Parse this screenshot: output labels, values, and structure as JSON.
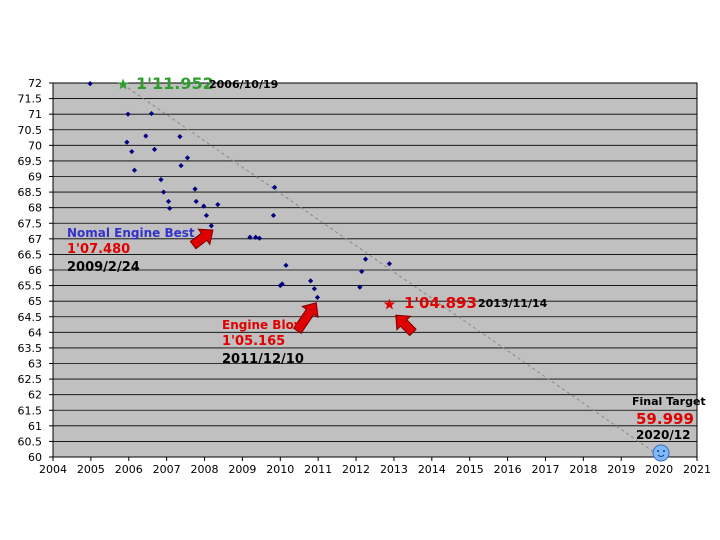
{
  "chart_data": {
    "type": "scatter",
    "title": "",
    "xlabel": "",
    "ylabel": "",
    "xlim": [
      2004,
      2021
    ],
    "ylim": [
      60,
      72
    ],
    "x_ticks": [
      2004,
      2005,
      2006,
      2007,
      2008,
      2009,
      2010,
      2011,
      2012,
      2013,
      2014,
      2015,
      2016,
      2017,
      2018,
      2019,
      2020,
      2021
    ],
    "y_ticks": [
      60,
      60.5,
      61,
      61.5,
      62,
      62.5,
      63,
      63.5,
      64,
      64.5,
      65,
      65.5,
      66,
      66.5,
      67,
      67.5,
      68,
      68.5,
      69,
      69.5,
      70,
      70.5,
      71,
      71.5,
      72
    ],
    "grid": true,
    "background": "#c0c0c0",
    "series": [
      {
        "color": "#000080",
        "points": [
          [
            2004.98,
            71.98
          ],
          [
            2005.98,
            71.0
          ],
          [
            2006.6,
            71.02
          ],
          [
            2005.95,
            70.1
          ],
          [
            2006.08,
            69.8
          ],
          [
            2006.45,
            70.3
          ],
          [
            2006.68,
            69.87
          ],
          [
            2006.15,
            69.2
          ],
          [
            2006.85,
            68.9
          ],
          [
            2006.92,
            68.5
          ],
          [
            2007.35,
            70.28
          ],
          [
            2007.38,
            69.35
          ],
          [
            2007.55,
            69.6
          ],
          [
            2007.75,
            68.6
          ],
          [
            2007.78,
            68.2
          ],
          [
            2007.05,
            68.2
          ],
          [
            2007.08,
            67.98
          ],
          [
            2007.98,
            68.05
          ],
          [
            2008.05,
            67.75
          ],
          [
            2008.35,
            68.1
          ],
          [
            2008.18,
            67.42
          ],
          [
            2009.2,
            67.05
          ],
          [
            2009.35,
            67.05
          ],
          [
            2009.45,
            67.02
          ],
          [
            2009.85,
            68.65
          ],
          [
            2009.82,
            67.75
          ],
          [
            2010.15,
            66.15
          ],
          [
            2010.0,
            65.5
          ],
          [
            2010.05,
            65.55
          ],
          [
            2010.8,
            65.65
          ],
          [
            2010.9,
            65.4
          ],
          [
            2010.98,
            65.12
          ],
          [
            2012.1,
            65.45
          ],
          [
            2012.15,
            65.95
          ],
          [
            2012.25,
            66.35
          ],
          [
            2012.88,
            66.2
          ]
        ]
      }
    ],
    "markers": [
      {
        "x": 2005.85,
        "y": 71.952,
        "symbol": "star",
        "color": "#2d9e2d"
      },
      {
        "x": 2012.88,
        "y": 64.893,
        "symbol": "star",
        "color": "#e00000"
      },
      {
        "x": 2020.05,
        "y": 60.0,
        "symbol": "smiley",
        "color": "#7fb8ff"
      }
    ],
    "trendline": {
      "from": [
        2005.85,
        71.952
      ],
      "to": [
        2020.05,
        60.0
      ],
      "style": "dashed",
      "color": "#888888"
    },
    "arrows": [
      {
        "from": [
          2007.7,
          66.8
        ],
        "to": [
          2008.22,
          67.28
        ],
        "color": "#e00000"
      },
      {
        "from": [
          2010.45,
          64.05
        ],
        "to": [
          2010.95,
          64.95
        ],
        "color": "#e00000"
      },
      {
        "from": [
          2013.5,
          64.0
        ],
        "to": [
          2013.05,
          64.55
        ],
        "color": "#e00000"
      }
    ],
    "annotations": [
      {
        "id": "best_time",
        "lines": [
          {
            "text": "1'11.952",
            "color": "#2d9e2d",
            "size": 16
          },
          {
            "text": "2006/10/19",
            "color": "#000000",
            "size": 11
          }
        ]
      },
      {
        "id": "normal_engine",
        "lines": [
          {
            "text": "Nomal Engine Best",
            "color": "#3333cc",
            "size": 12
          },
          {
            "text": "1'07.480",
            "color": "#e00000",
            "size": 13
          },
          {
            "text": "2009/2/24",
            "color": "#000000",
            "size": 13
          }
        ]
      },
      {
        "id": "engine_blow",
        "lines": [
          {
            "text": "Engine Blow",
            "color": "#e00000",
            "size": 12
          },
          {
            "text": "1'05.165",
            "color": "#e00000",
            "size": 13
          },
          {
            "text": "2011/12/10",
            "color": "#000000",
            "size": 13
          }
        ]
      },
      {
        "id": "record_2013",
        "lines": [
          {
            "text": "1'04.893",
            "color": "#e00000",
            "size": 15
          },
          {
            "text": "2013/11/14",
            "color": "#000000",
            "size": 11
          }
        ]
      },
      {
        "id": "final_target",
        "lines": [
          {
            "text": "Final Target",
            "color": "#000000",
            "size": 11
          },
          {
            "text": "59.999",
            "color": "#e00000",
            "size": 15
          },
          {
            "text": "2020/12",
            "color": "#000000",
            "size": 12
          }
        ]
      }
    ]
  }
}
